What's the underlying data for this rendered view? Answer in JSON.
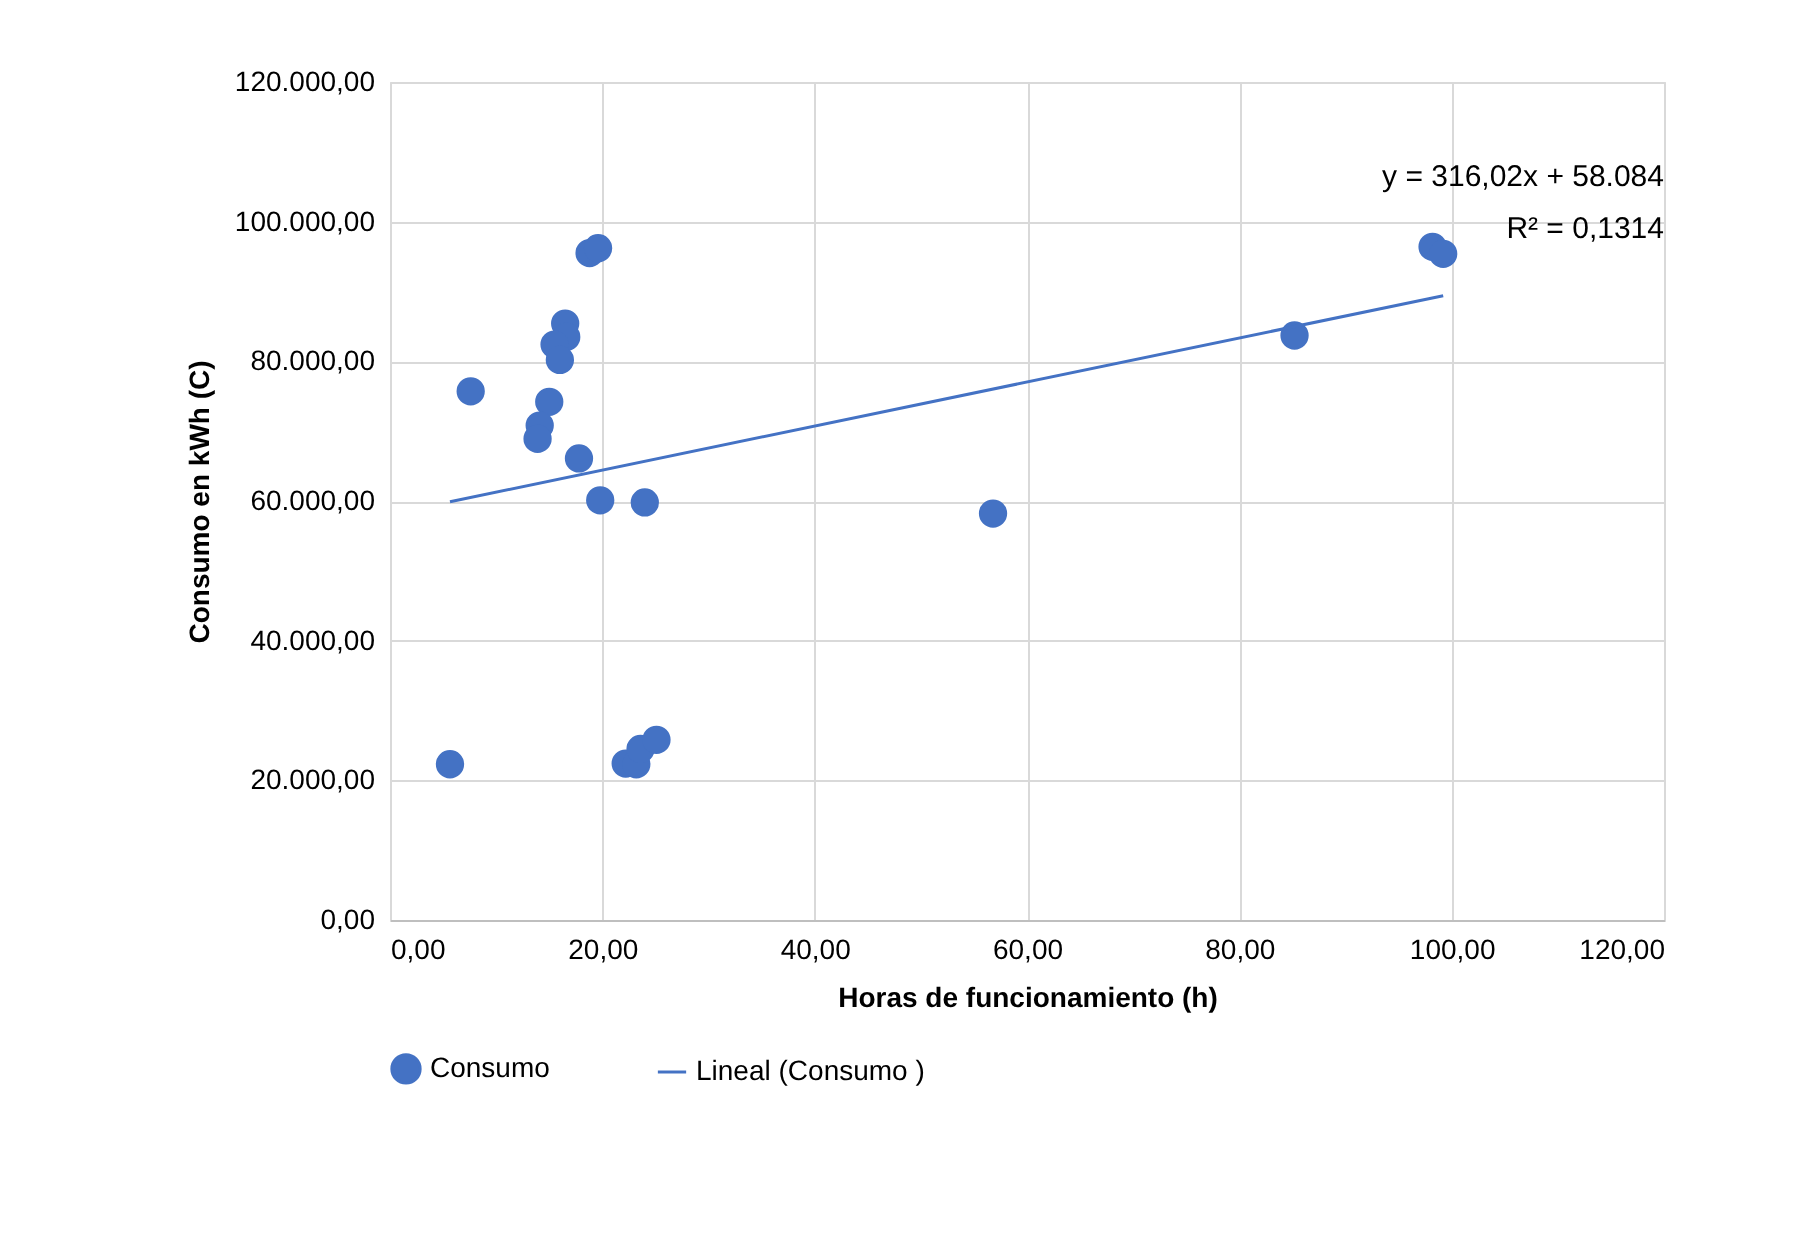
{
  "chart_data": {
    "type": "scatter",
    "xlabel": "Horas de funcionamiento (h)",
    "ylabel": "Consumo en kWh (C)",
    "series": [
      {
        "name": "Consumo",
        "marker": "circle",
        "color": "#4472c4",
        "x": [
          5.65,
          7.6,
          16.5,
          16.6,
          15.5,
          16.0,
          15.0,
          14.1,
          13.9,
          17.8,
          19.8,
          24.0,
          18.8,
          19.6,
          22.2,
          23.2,
          23.6,
          25.1,
          85.2,
          56.8,
          98.2,
          99.2
        ],
        "values": [
          22300,
          75700,
          85400,
          83500,
          82400,
          80200,
          74200,
          70800,
          68900,
          66100,
          60100,
          59800,
          95500,
          96200,
          22400,
          22300,
          24500,
          25800,
          83700,
          58200,
          96400,
          95400
        ]
      },
      {
        "name": "Lineal (Consumo )",
        "type": "line",
        "marker": "none",
        "color": "#4472c4",
        "x": [
          5.65,
          99.2
        ],
        "values": [
          59900,
          89400
        ]
      }
    ],
    "xlim": [
      0,
      120
    ],
    "xticks": [
      {
        "value": 0,
        "label": "0,00"
      },
      {
        "value": 20,
        "label": "20,00"
      },
      {
        "value": 40,
        "label": "40,00"
      },
      {
        "value": 60,
        "label": "60,00"
      },
      {
        "value": 80,
        "label": "80,00"
      },
      {
        "value": 100,
        "label": "100,00"
      },
      {
        "value": 120,
        "label": "120,00"
      }
    ],
    "ylim": [
      0,
      120000
    ],
    "yticks": [
      {
        "value": 0,
        "label": "0,00"
      },
      {
        "value": 20000,
        "label": "20.000,00"
      },
      {
        "value": 40000,
        "label": "40.000,00"
      },
      {
        "value": 60000,
        "label": "60.000,00"
      },
      {
        "value": 80000,
        "label": "80.000,00"
      },
      {
        "value": 100000,
        "label": "100.000,00"
      },
      {
        "value": 120000,
        "label": "120.000,00"
      }
    ],
    "annotations": [
      "y = 316,02x + 58.084",
      "R² = 0,1314"
    ],
    "grid": true,
    "legend": "bottom",
    "line_style": "solid"
  }
}
